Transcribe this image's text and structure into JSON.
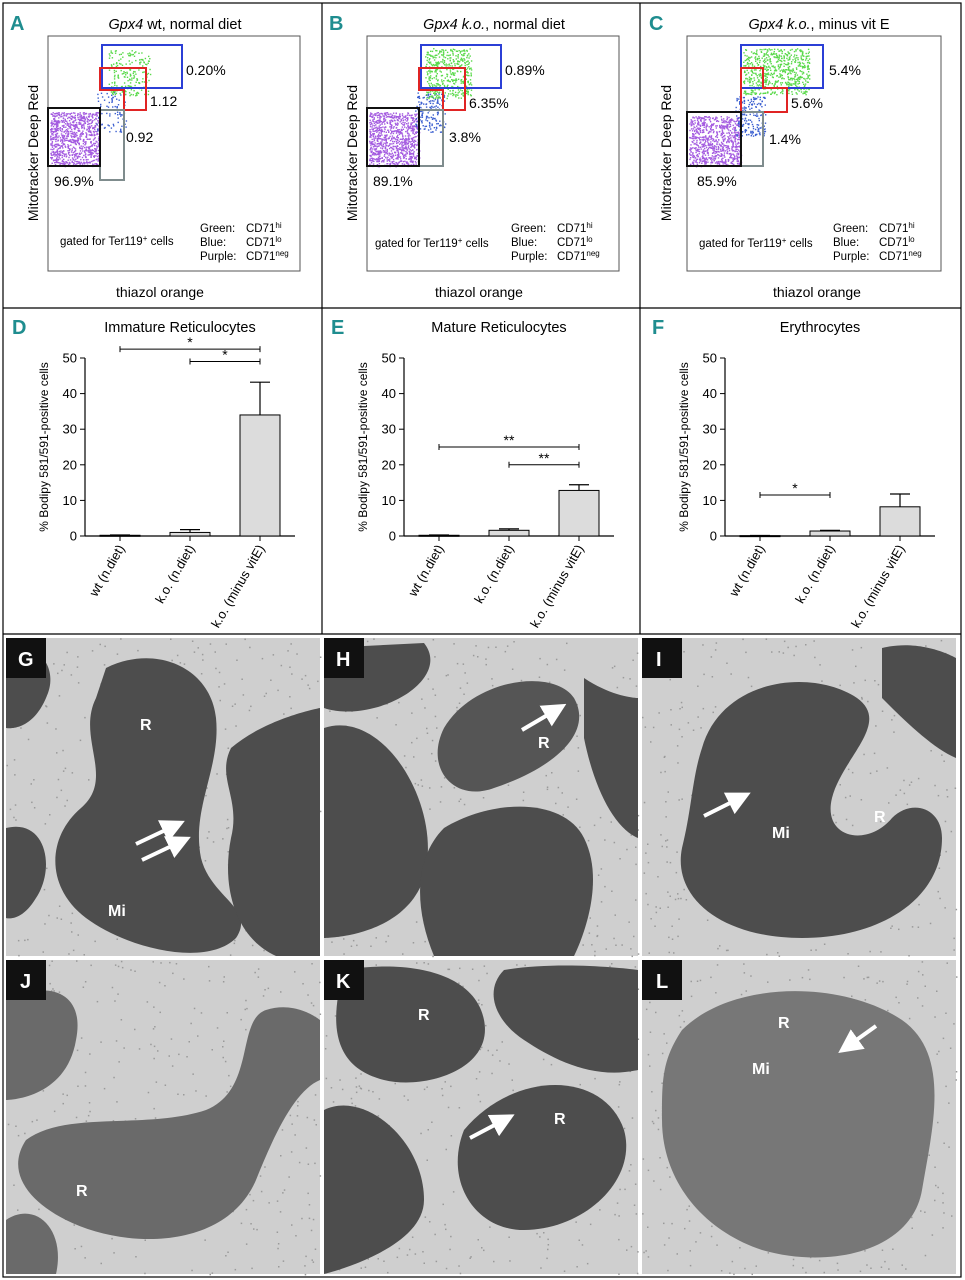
{
  "colors": {
    "panel_letter": "#1f8d8f",
    "gate_blue": "#2b3fd6",
    "gate_red": "#e02424",
    "gate_black": "#111111",
    "gate_gray": "#7f8c8d",
    "dots_green": "#59d94a",
    "dots_purple": "#a45be0",
    "dots_blue": "#3b5fd0",
    "bar_fill": "#dcdcdc",
    "em_light": "#cfcfcf",
    "em_dark": "#4d4d4d"
  },
  "flow_panels": [
    {
      "letter": "A",
      "title_italic": "Gpx4",
      "title_rest": " wt, normal diet",
      "ylabel": "Mitotracker Deep Red",
      "xlabel": "thiazol orange",
      "gate_note": "gated for Ter119",
      "gate_note_sup": "+",
      "gate_note_end": " cells",
      "pct_blue": "0.20%",
      "pct_red": "1.12",
      "pct_gray": "0.92",
      "pct_black": "96.9%",
      "legend": [
        {
          "label": "Green:",
          "marker": "CD71",
          "sup": "hi"
        },
        {
          "label": "Blue:",
          "marker": "CD71",
          "sup": "lo"
        },
        {
          "label": "Purple:",
          "marker": "CD71",
          "sup": "neg"
        }
      ]
    },
    {
      "letter": "B",
      "title_italic": "Gpx4 k.o.",
      "title_rest": ", normal diet",
      "ylabel": "Mitotracker Deep Red",
      "xlabel": "thiazol orange",
      "gate_note": "gated for Ter119",
      "gate_note_sup": "+",
      "gate_note_end": " cells",
      "pct_blue": "0.89%",
      "pct_red": "6.35%",
      "pct_gray": "3.8%",
      "pct_black": "89.1%",
      "legend": [
        {
          "label": "Green:",
          "marker": "CD71",
          "sup": "hi"
        },
        {
          "label": "Blue:",
          "marker": "CD71",
          "sup": "lo"
        },
        {
          "label": "Purple:",
          "marker": "CD71",
          "sup": "neg"
        }
      ]
    },
    {
      "letter": "C",
      "title_italic": "Gpx4 k.o.",
      "title_rest": ", minus vit E",
      "ylabel": "Mitotracker Deep Red",
      "xlabel": "thiazol orange",
      "gate_note": "gated for Ter119",
      "gate_note_sup": "+",
      "gate_note_end": " cells",
      "pct_blue": "5.4%",
      "pct_red": "5.6%",
      "pct_gray": "1.4%",
      "pct_black": "85.9%",
      "legend": [
        {
          "label": "Green:",
          "marker": "CD71",
          "sup": "hi"
        },
        {
          "label": "Blue:",
          "marker": "CD71",
          "sup": "lo"
        },
        {
          "label": "Purple:",
          "marker": "CD71",
          "sup": "neg"
        }
      ]
    }
  ],
  "chart_data": [
    {
      "type": "bar",
      "letter": "D",
      "title": "Immature Reticulocytes",
      "ylabel": "% Bodipy 581/591-positive cells",
      "categories": [
        "wt (n.diet)",
        "k.o. (n.diet)",
        "k.o. (minus vitE)"
      ],
      "values": [
        0.2,
        1.0,
        34
      ],
      "errors": [
        0.1,
        0.8,
        9.2
      ],
      "ylim": [
        0,
        50
      ],
      "yticks": [
        "0",
        "10",
        "20",
        "30",
        "40",
        "50"
      ],
      "significance": [
        {
          "from": 0,
          "to": 2,
          "label": "*",
          "level": 52.5
        },
        {
          "from": 1,
          "to": 2,
          "label": "*",
          "level": 49
        }
      ]
    },
    {
      "type": "bar",
      "letter": "E",
      "title": "Mature Reticulocytes",
      "ylabel": "% Bodipy 581/591-positive cells",
      "categories": [
        "wt (n.diet)",
        "k.o. (n.diet)",
        "k.o. (minus vitE)"
      ],
      "values": [
        0.2,
        1.6,
        12.8
      ],
      "errors": [
        0.1,
        0.4,
        1.6
      ],
      "ylim": [
        0,
        50
      ],
      "yticks": [
        "0",
        "10",
        "20",
        "30",
        "40",
        "50"
      ],
      "significance": [
        {
          "from": 0,
          "to": 2,
          "label": "**",
          "level": 25
        },
        {
          "from": 1,
          "to": 2,
          "label": "**",
          "level": 20
        }
      ]
    },
    {
      "type": "bar",
      "letter": "F",
      "title": "Erythrocytes",
      "ylabel": "% Bodipy 581/591-positive cells",
      "categories": [
        "wt (n.diet)",
        "k.o. (n.diet)",
        "k.o. (minus vitE)"
      ],
      "values": [
        0.1,
        1.4,
        8.2
      ],
      "errors": [
        0.05,
        0.2,
        3.6
      ],
      "ylim": [
        0,
        50
      ],
      "yticks": [
        "0",
        "10",
        "20",
        "30",
        "40",
        "50"
      ],
      "significance": [
        {
          "from": 0,
          "to": 1,
          "label": "*",
          "level": 11.5
        }
      ]
    }
  ],
  "em_panels": [
    {
      "letter": "G",
      "labels": [
        "R",
        "Mi"
      ],
      "arrows": 2
    },
    {
      "letter": "H",
      "labels": [
        "R"
      ],
      "arrows": 1
    },
    {
      "letter": "I",
      "labels": [
        "Mi",
        "R"
      ],
      "arrows": 1
    },
    {
      "letter": "J",
      "labels": [
        "R"
      ],
      "arrows": 0
    },
    {
      "letter": "K",
      "labels": [
        "R",
        "R"
      ],
      "arrows": 1
    },
    {
      "letter": "L",
      "labels": [
        "R",
        "Mi"
      ],
      "arrows": 1
    }
  ]
}
